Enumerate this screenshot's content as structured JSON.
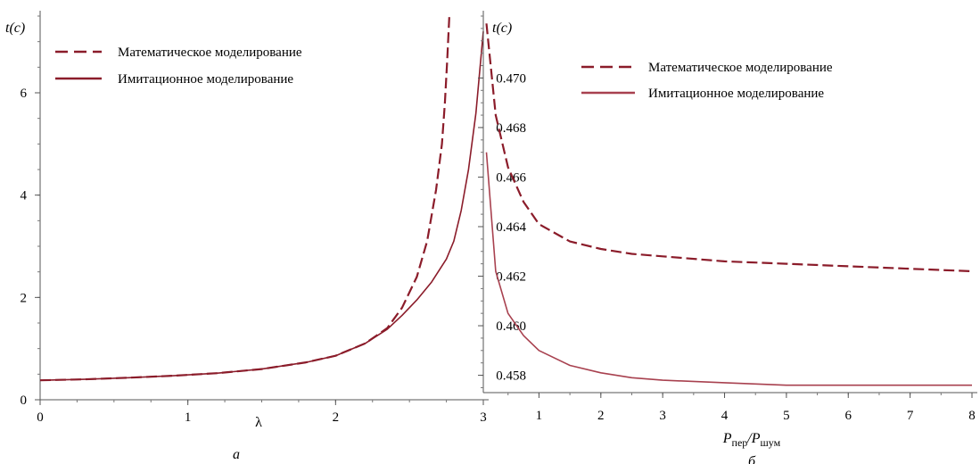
{
  "chart_data": [
    {
      "type": "line",
      "ylabel": "t(c)",
      "xlabel": "λ",
      "caption": "а",
      "xlim": [
        0,
        3
      ],
      "ylim": [
        0,
        7.5
      ],
      "xticks": [
        0,
        1,
        2,
        3
      ],
      "yticks": [
        0,
        2,
        4,
        6
      ],
      "grid": false,
      "legend_position": "top-left",
      "series": [
        {
          "name": "Математическое моделирование",
          "style": "dashed",
          "color": "#8b1c2a",
          "x": [
            0,
            0.3,
            0.6,
            0.9,
            1.2,
            1.5,
            1.8,
            2.0,
            2.2,
            2.35,
            2.45,
            2.55,
            2.62,
            2.68,
            2.72,
            2.74,
            2.755,
            2.77
          ],
          "y": [
            0.38,
            0.4,
            0.43,
            0.47,
            0.52,
            0.6,
            0.73,
            0.86,
            1.1,
            1.4,
            1.8,
            2.4,
            3.1,
            4.1,
            5.0,
            5.8,
            6.6,
            7.5
          ]
        },
        {
          "name": "Имитационное моделирование",
          "style": "solid",
          "color": "#8b1c2a",
          "x": [
            0,
            0.3,
            0.6,
            0.9,
            1.2,
            1.5,
            1.8,
            2.0,
            2.2,
            2.35,
            2.45,
            2.55,
            2.65,
            2.75,
            2.8,
            2.85,
            2.9,
            2.95,
            3.0
          ],
          "y": [
            0.38,
            0.4,
            0.43,
            0.47,
            0.52,
            0.6,
            0.73,
            0.86,
            1.1,
            1.38,
            1.65,
            1.95,
            2.3,
            2.75,
            3.1,
            3.7,
            4.5,
            5.6,
            7.2
          ]
        }
      ]
    },
    {
      "type": "line",
      "ylabel": "t(c)",
      "xlabel": "Pпер/Pшум",
      "caption": "б",
      "xlim": [
        0.1,
        8
      ],
      "ylim": [
        0.4573,
        0.4725
      ],
      "xticks": [
        1,
        2,
        3,
        4,
        5,
        6,
        7,
        8
      ],
      "yticks": [
        0.458,
        0.46,
        0.462,
        0.464,
        0.466,
        0.468,
        0.47
      ],
      "ytick_labels": [
        "0.458",
        "0.460",
        "0.462",
        "0.464",
        "0.466",
        "0.468",
        "0.470"
      ],
      "grid": false,
      "legend_position": "top",
      "series": [
        {
          "name": "Математическое моделирование",
          "style": "dashed",
          "color": "#8b1c2a",
          "x": [
            0.15,
            0.3,
            0.5,
            0.75,
            1,
            1.5,
            2,
            2.5,
            3,
            4,
            5,
            6,
            7,
            8
          ],
          "y": [
            0.4722,
            0.4685,
            0.4664,
            0.465,
            0.4641,
            0.4634,
            0.4631,
            0.4629,
            0.4628,
            0.4626,
            0.4625,
            0.4624,
            0.4623,
            0.4622
          ]
        },
        {
          "name": "Имитационное моделирование",
          "style": "solid",
          "color": "#a8414f",
          "x": [
            0.15,
            0.3,
            0.5,
            0.75,
            1,
            1.5,
            2,
            2.5,
            3,
            4,
            5,
            6,
            7,
            8
          ],
          "y": [
            0.467,
            0.4622,
            0.4605,
            0.4596,
            0.459,
            0.4584,
            0.4581,
            0.4579,
            0.4578,
            0.4577,
            0.4576,
            0.4576,
            0.4576,
            0.4576
          ]
        }
      ]
    }
  ]
}
